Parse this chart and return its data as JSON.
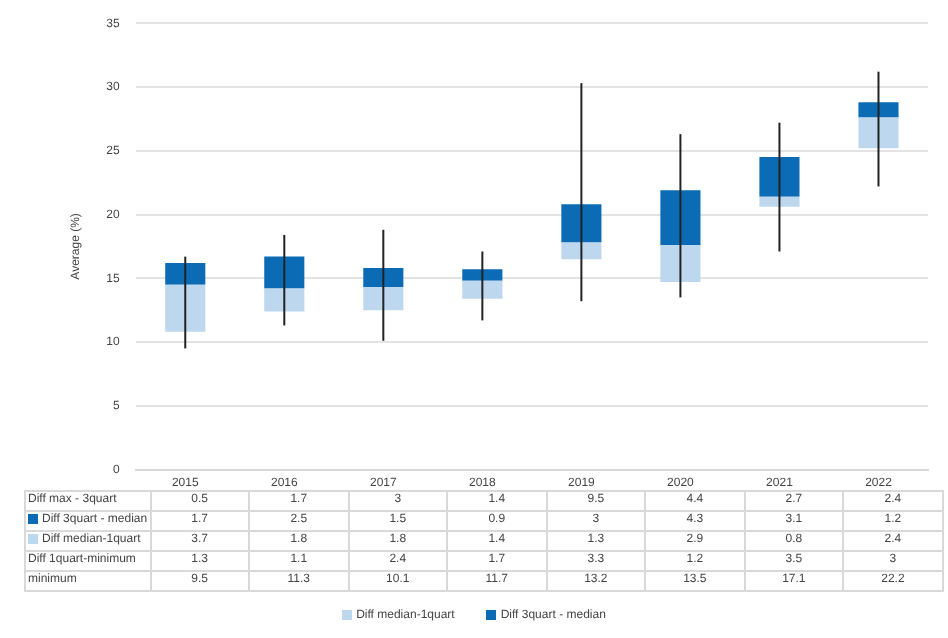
{
  "chart_data": {
    "type": "bar",
    "stacked": true,
    "ylabel": "Average (%)",
    "categories": [
      "2015",
      "2016",
      "2017",
      "2018",
      "2019",
      "2020",
      "2021",
      "2022"
    ],
    "series": [
      {
        "name": "Diff median-1quart",
        "color": "#bdd7ee",
        "values": [
          3.7,
          1.8,
          1.8,
          1.4,
          1.3,
          2.9,
          0.8,
          2.4
        ],
        "base": [
          10.8,
          12.4,
          12.5,
          13.4,
          16.5,
          14.7,
          20.6,
          25.2
        ]
      },
      {
        "name": "Diff 3quart - median",
        "color": "#0b6cb5",
        "values": [
          1.7,
          2.5,
          1.5,
          0.9,
          3,
          4.3,
          3.1,
          1.2
        ],
        "errors": [
          [
            9.5,
            16.7
          ],
          [
            11.3,
            18.4
          ],
          [
            10.1,
            18.8
          ],
          [
            11.7,
            17.1
          ],
          [
            13.2,
            30.3
          ],
          [
            13.5,
            26.3
          ],
          [
            17.1,
            27.2
          ],
          [
            22.2,
            31.2
          ]
        ]
      }
    ],
    "annotations": [
      "Diff max - 3quart",
      "0.5",
      "1.7",
      "3",
      "1.4",
      "9.5",
      "4.4",
      "2.7",
      "2.4",
      "Diff 1quart-minimum",
      "1.3",
      "1.1",
      "2.4",
      "1.7",
      "3.3",
      "1.2",
      "3.5",
      "3",
      "minimum",
      "9.5",
      "11.3",
      "10.1",
      "11.7",
      "13.2",
      "13.5",
      "17.1",
      "22.2"
    ],
    "ylim": [
      0,
      35
    ],
    "yticks": [
      0,
      5,
      10,
      15,
      20,
      25,
      30,
      35
    ],
    "grid": "y",
    "legend": "bottom",
    "data_labels": true
  }
}
